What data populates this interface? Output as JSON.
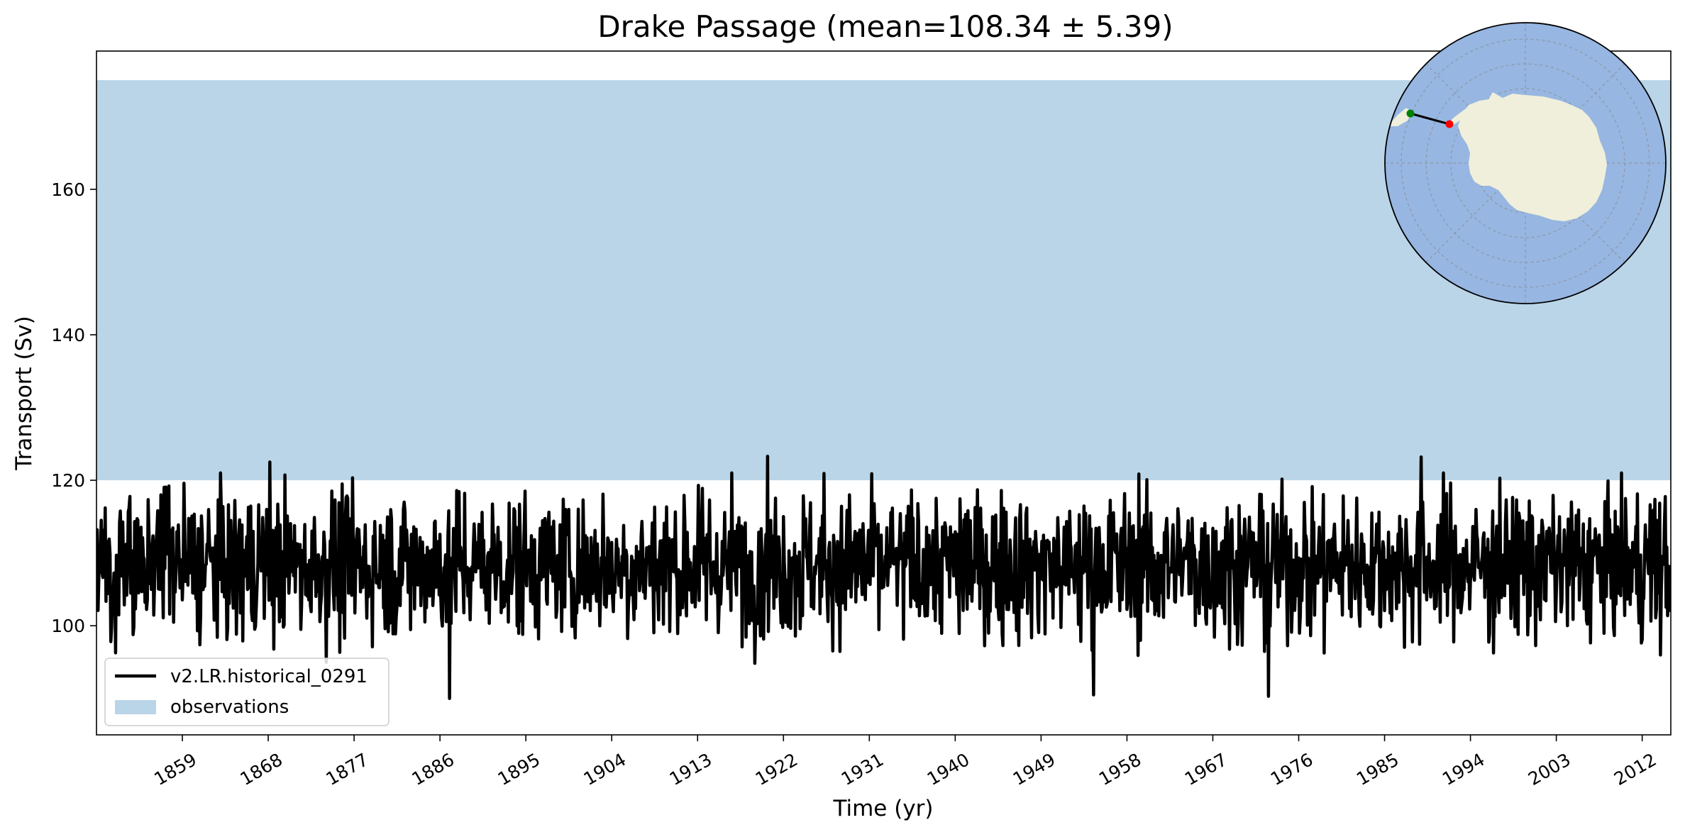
{
  "chart_data": {
    "type": "line",
    "title": "Drake Passage (mean=108.34 ± 5.39)",
    "xlabel": "Time (yr)",
    "ylabel": "Transport (Sv)",
    "xlim": [
      1850,
      2015
    ],
    "ylim": [
      85,
      179
    ],
    "x_ticks": [
      1859,
      1868,
      1877,
      1886,
      1895,
      1904,
      1913,
      1922,
      1931,
      1940,
      1949,
      1958,
      1967,
      1976,
      1985,
      1994,
      2003,
      2012
    ],
    "y_ticks": [
      100,
      120,
      140,
      160
    ],
    "grid": false,
    "legend_location": "lower-left",
    "observation_band": {
      "name": "observations",
      "y_min": 120,
      "y_max": 175,
      "color": "#bad5e8"
    },
    "series": [
      {
        "name": "v2.LR.historical_0291",
        "color": "#000000",
        "x_start": 1850,
        "x_end": 2015,
        "mean": 108.34,
        "std": 5.39,
        "samples_per_year": 12,
        "markers": [
          {
            "x": 1868.2,
            "y": 122.5
          },
          {
            "x": 1887.0,
            "y": 90.0
          },
          {
            "x": 1920.3,
            "y": 123.3
          },
          {
            "x": 1954.5,
            "y": 90.5
          },
          {
            "x": 1972.8,
            "y": 90.3
          },
          {
            "x": 1988.8,
            "y": 123.2
          }
        ]
      }
    ],
    "inset_map": {
      "type": "south-polar-stereographic",
      "ocean_color": "#97b6e1",
      "land_color": "#efefdb",
      "section_start_color": "#008000",
      "section_end_color": "#ff0000"
    }
  }
}
